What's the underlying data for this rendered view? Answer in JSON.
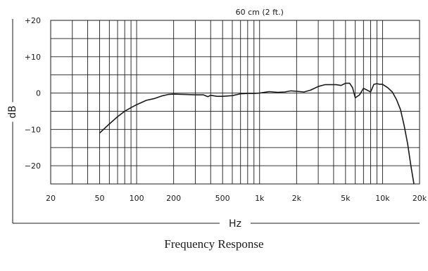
{
  "caption": "Frequency Response",
  "chart_data": {
    "type": "line",
    "title": "",
    "annotation": "60 cm (2 ft.)",
    "xlabel": "Hz",
    "ylabel": "dB",
    "xscale": "log",
    "xlim": [
      20,
      20000
    ],
    "ylim": [
      -25,
      20
    ],
    "grid": true,
    "x_ticks": [
      {
        "value": 20,
        "label": "20"
      },
      {
        "value": 50,
        "label": "50"
      },
      {
        "value": 100,
        "label": "100"
      },
      {
        "value": 200,
        "label": "200"
      },
      {
        "value": 500,
        "label": "500"
      },
      {
        "value": 1000,
        "label": "1k"
      },
      {
        "value": 2000,
        "label": "2k"
      },
      {
        "value": 5000,
        "label": "5k"
      },
      {
        "value": 10000,
        "label": "10k"
      },
      {
        "value": 20000,
        "label": "20k"
      }
    ],
    "y_ticks": [
      {
        "value": 20,
        "label": "+20"
      },
      {
        "value": 10,
        "label": "+10"
      },
      {
        "value": 0,
        "label": "0"
      },
      {
        "value": -10,
        "label": "−10"
      },
      {
        "value": -20,
        "label": "−20"
      }
    ],
    "series": [
      {
        "x": [
          50,
          60,
          70,
          80,
          90,
          100,
          120,
          140,
          160,
          180,
          200,
          250,
          300,
          350,
          380,
          400,
          450,
          500,
          600,
          700,
          800,
          900,
          1000,
          1200,
          1400,
          1600,
          1800,
          2000,
          2300,
          2600,
          3000,
          3400,
          3800,
          4200,
          4600,
          5000,
          5400,
          5700,
          6000,
          6500,
          7000,
          7500,
          8000,
          8500,
          9000,
          9500,
          10000,
          11000,
          12000,
          13000,
          14000,
          15000,
          16000,
          17000,
          18000
        ],
        "y": [
          -11,
          -8.5,
          -6.5,
          -5,
          -4,
          -3.2,
          -2,
          -1.5,
          -0.8,
          -0.4,
          -0.3,
          -0.4,
          -0.5,
          -0.5,
          -1,
          -0.6,
          -0.9,
          -0.9,
          -0.7,
          -0.2,
          -0.1,
          -0.1,
          0,
          0.4,
          0.2,
          0.3,
          0.6,
          0.5,
          0.3,
          0.8,
          1.8,
          2.3,
          2.3,
          2.3,
          2.1,
          2.7,
          2.7,
          1.5,
          -1.3,
          -0.5,
          1.3,
          0.8,
          0.3,
          2.4,
          2.6,
          2.4,
          2.4,
          1.5,
          0.3,
          -1.8,
          -4.5,
          -9,
          -14,
          -20,
          -25
        ]
      }
    ]
  }
}
